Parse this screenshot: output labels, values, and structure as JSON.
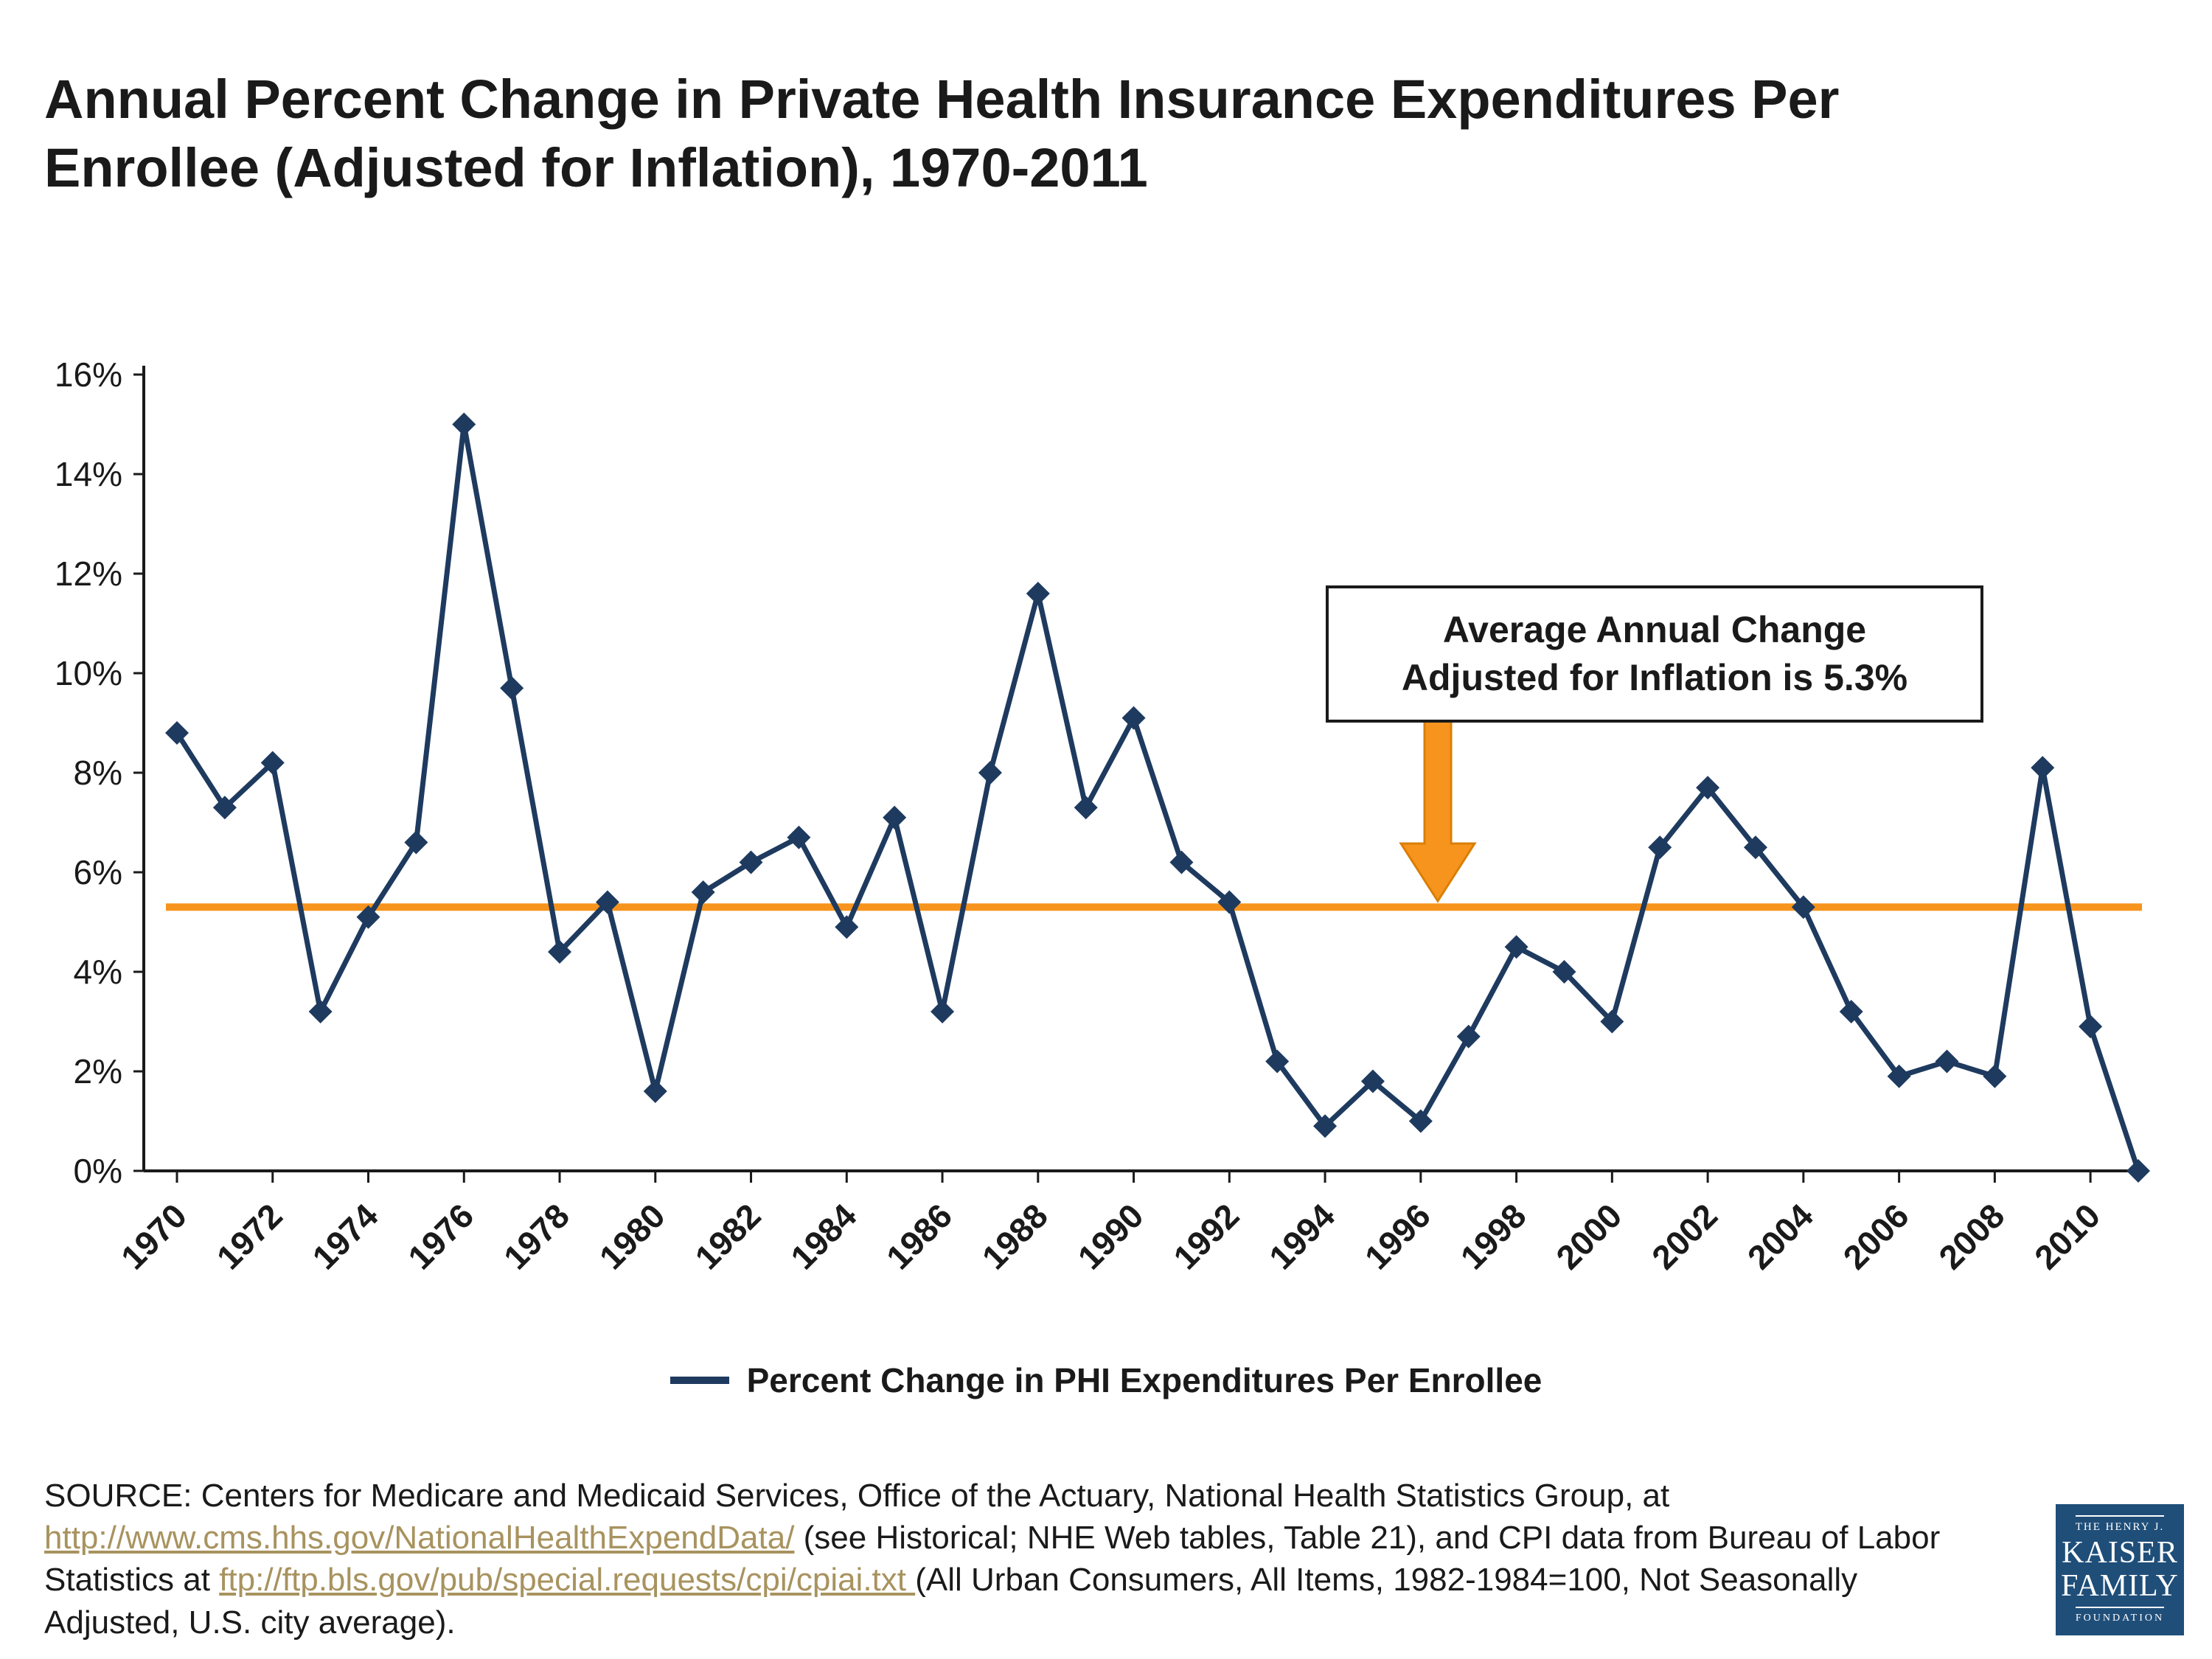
{
  "title": "Annual Percent Change in Private Health Insurance Expenditures Per Enrollee (Adjusted for Inflation), 1970-2011",
  "annotation": {
    "line1": "Average Annual Change",
    "line2": "Adjusted for Inflation is 5.3%"
  },
  "legend": {
    "label": "Percent Change in PHI Expenditures Per Enrollee"
  },
  "source": {
    "segments": [
      {
        "text": "SOURCE: Centers for Medicare and Medicaid Services, Office of the Actuary, National Health Statistics Group, at ",
        "link": false
      },
      {
        "text": "http://www.cms.hhs.gov/NationalHealthExpendData/",
        "link": true
      },
      {
        "text": " (see Historical; NHE Web tables, Table 21), and CPI data from Bureau of Labor Statistics at ",
        "link": false
      },
      {
        "text": "ftp://ftp.bls.gov/pub/special.requests/cpi/cpiai.txt ",
        "link": true
      },
      {
        "text": "(All Urban Consumers, All Items, 1982-1984=100, Not Seasonally Adjusted, U.S. city average).",
        "link": false
      }
    ]
  },
  "logo": {
    "top": "THE HENRY J.",
    "name1": "KAISER",
    "name2": "FAMILY",
    "bottom": "FOUNDATION"
  },
  "colors": {
    "line": "#1e3a5f",
    "average": "#f7941d",
    "arrow_border": "#d97f06",
    "axis": "#1a1a1a",
    "text": "#1a1a1a",
    "link": "#a8935f",
    "logo_bg": "#1f4e79"
  },
  "chart_data": {
    "type": "line",
    "title": "Annual Percent Change in Private Health Insurance Expenditures Per Enrollee (Adjusted for Inflation), 1970-2011",
    "x": [
      1970,
      1971,
      1972,
      1973,
      1974,
      1975,
      1976,
      1977,
      1978,
      1979,
      1980,
      1981,
      1982,
      1983,
      1984,
      1985,
      1986,
      1987,
      1988,
      1989,
      1990,
      1991,
      1992,
      1993,
      1994,
      1995,
      1996,
      1997,
      1998,
      1999,
      2000,
      2001,
      2002,
      2003,
      2004,
      2005,
      2006,
      2007,
      2008,
      2009,
      2010,
      2011
    ],
    "series": [
      {
        "name": "Percent Change in PHI Expenditures Per Enrollee",
        "values": [
          8.8,
          7.3,
          8.2,
          3.2,
          5.1,
          6.6,
          15.0,
          9.7,
          4.4,
          5.4,
          1.6,
          5.6,
          6.2,
          6.7,
          4.9,
          7.1,
          3.2,
          8.0,
          11.6,
          7.3,
          9.1,
          6.2,
          5.4,
          2.2,
          0.9,
          1.8,
          1.0,
          2.7,
          4.5,
          4.0,
          3.0,
          6.5,
          7.7,
          6.5,
          5.3,
          3.2,
          1.9,
          2.2,
          1.9,
          8.1,
          2.9,
          0.0
        ]
      }
    ],
    "average_line": 5.3,
    "ylim": [
      0,
      16
    ],
    "ytick_step": 2,
    "ytick_suffix": "%",
    "xtick_step": 2,
    "xtick_last_labeled": 2010,
    "grid": false,
    "legend_position": "bottom",
    "marker": "diamond"
  }
}
